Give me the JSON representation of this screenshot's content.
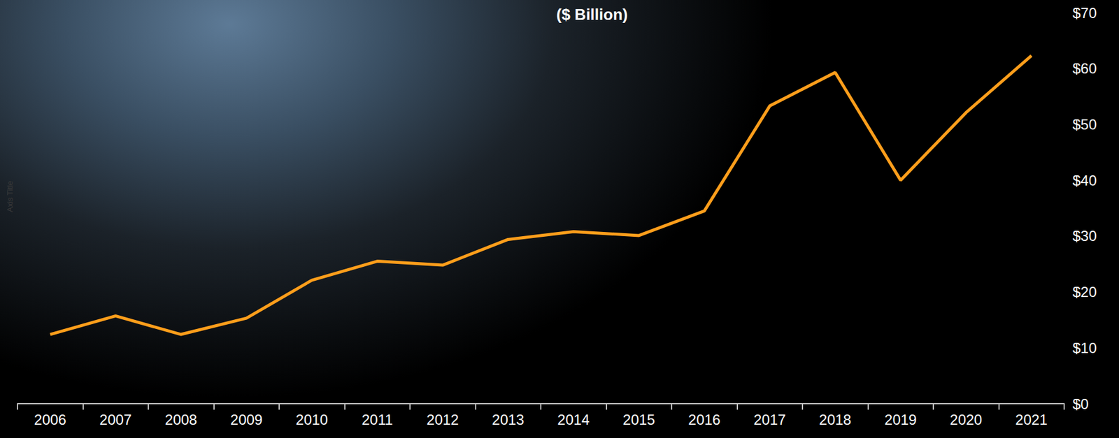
{
  "chart_data": {
    "type": "line",
    "title": "($ Billion)",
    "y_label": "Axis Title",
    "categories": [
      "2006",
      "2007",
      "2008",
      "2009",
      "2010",
      "2011",
      "2012",
      "2013",
      "2014",
      "2015",
      "2016",
      "2017",
      "2018",
      "2019",
      "2020",
      "2021"
    ],
    "values": [
      12.4,
      15.7,
      12.4,
      15.3,
      22.1,
      25.5,
      24.8,
      29.4,
      30.8,
      30.1,
      34.5,
      53.3,
      59.3,
      40.0,
      52.1,
      62.3
    ],
    "color": "#ff9e1b",
    "ylim": [
      0,
      70
    ],
    "yticks": [
      {
        "value": 0,
        "label": "$0"
      },
      {
        "value": 10,
        "label": "$10"
      },
      {
        "value": 20,
        "label": "$20"
      },
      {
        "value": 30,
        "label": "$30"
      },
      {
        "value": 40,
        "label": "$40"
      },
      {
        "value": 50,
        "label": "$50"
      },
      {
        "value": 60,
        "label": "$60"
      },
      {
        "value": 70,
        "label": "$70"
      }
    ],
    "grid": false
  }
}
